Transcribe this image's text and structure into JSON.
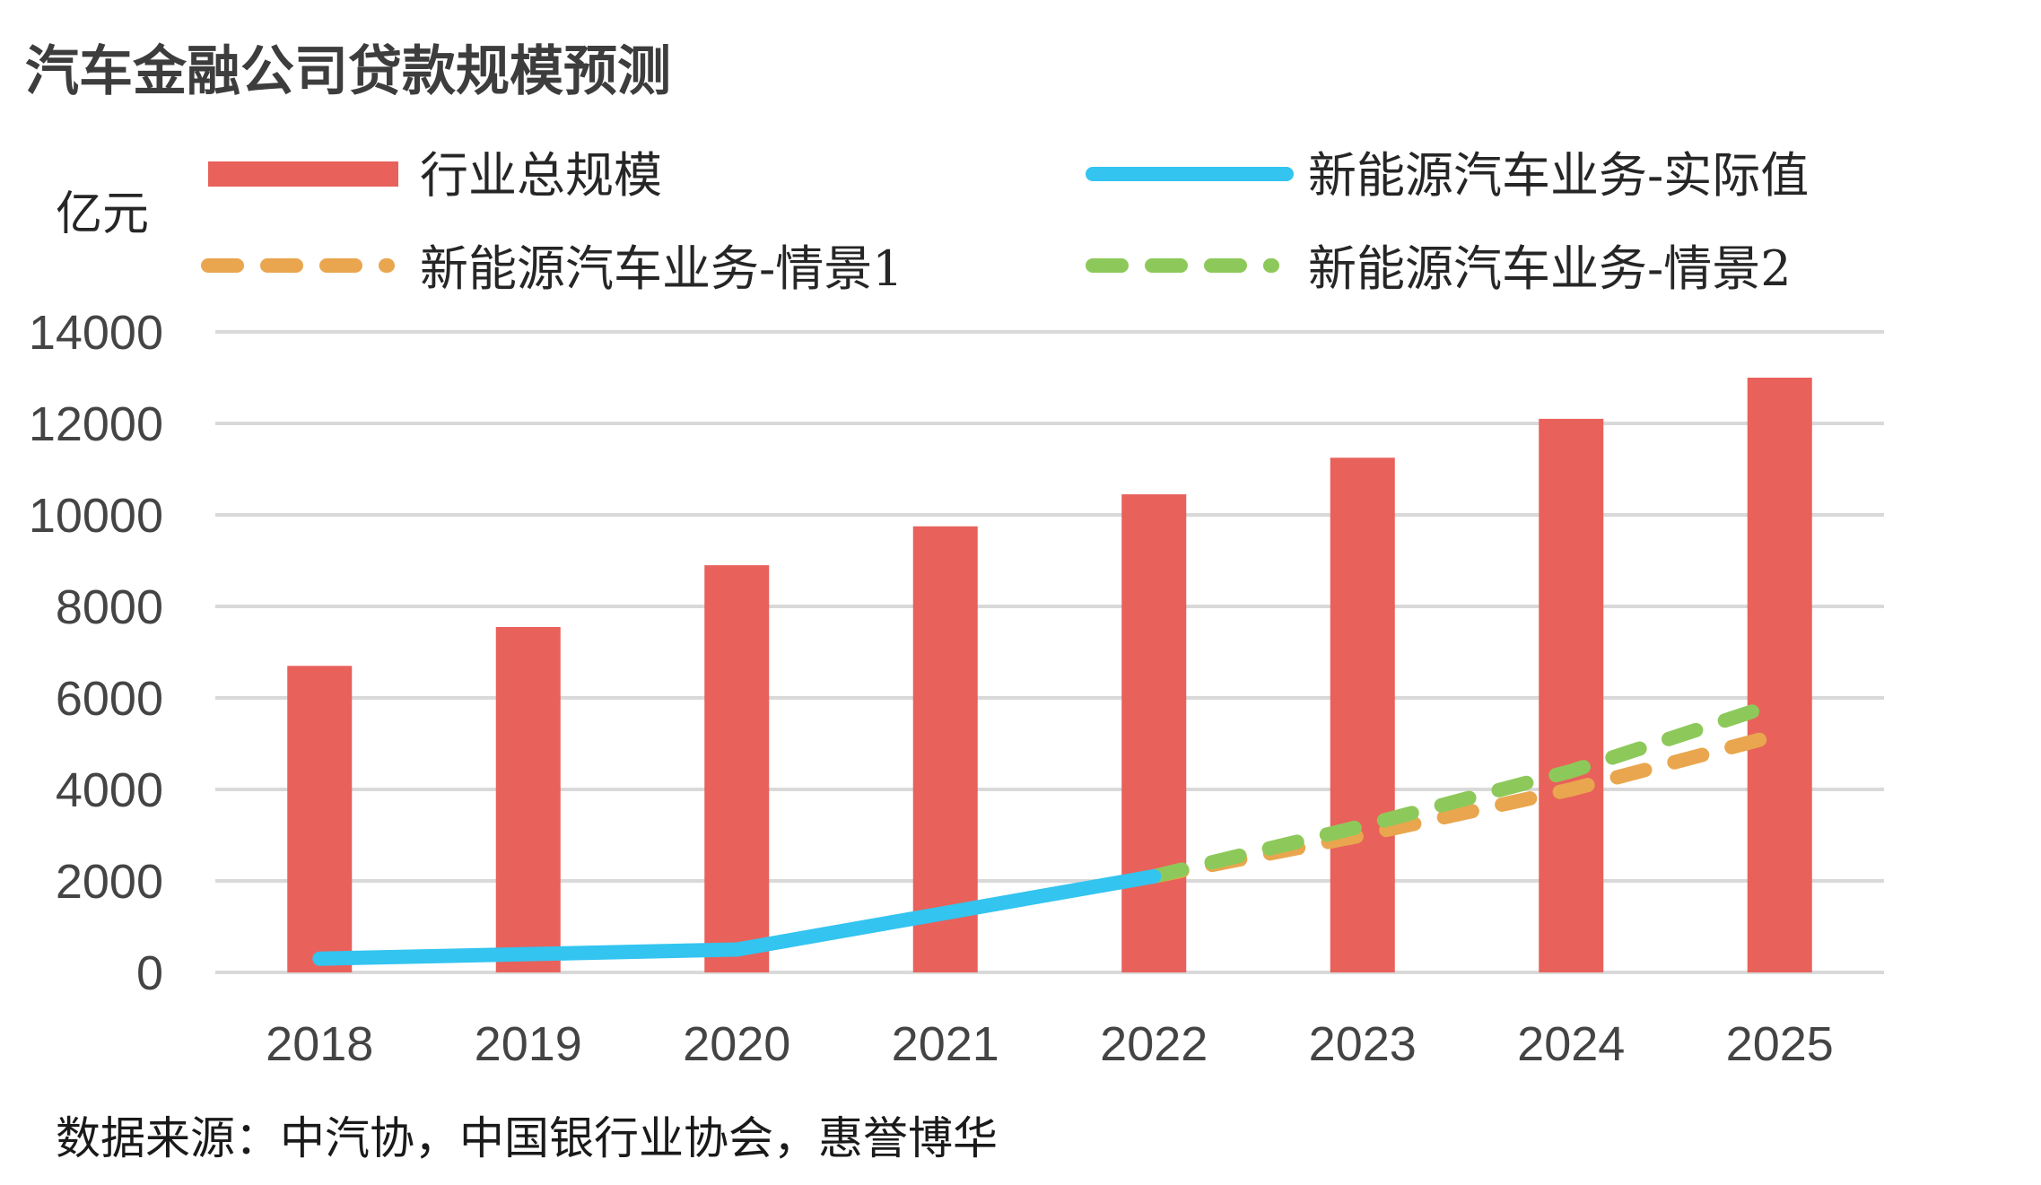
{
  "source": "数据来源：中汽协，中国银行业协会，惠誉博华",
  "colors": {
    "industry": "#e8615a",
    "actual": "#33c4f0",
    "scenario1": "#e9a64e",
    "scenario2": "#8dc95a",
    "grid": "#d9d9d9"
  },
  "chart_data": {
    "type": "bar",
    "title": "汽车金融公司贷款规模预测",
    "ylabel": "亿元",
    "xlabel": "",
    "categories": [
      "2018",
      "2019",
      "2020",
      "2021",
      "2022",
      "2023",
      "2024",
      "2025"
    ],
    "ylim": [
      0,
      14000
    ],
    "yticks": [
      0,
      2000,
      4000,
      6000,
      8000,
      10000,
      12000,
      14000
    ],
    "grid": true,
    "legend_position": "top",
    "series": [
      {
        "name": "行业总规模",
        "type": "bar",
        "values": [
          6700,
          7550,
          8900,
          9750,
          10450,
          11250,
          12100,
          13000
        ]
      },
      {
        "name": "新能源汽车业务-实际值",
        "type": "line",
        "values": [
          300,
          400,
          500,
          1300,
          2100,
          null,
          null,
          null
        ]
      },
      {
        "name": "新能源汽车业务-情景1",
        "type": "line-dashed",
        "values": [
          null,
          null,
          null,
          null,
          2100,
          3000,
          4000,
          5200
        ]
      },
      {
        "name": "新能源汽车业务-情景2",
        "type": "line-dashed",
        "values": [
          null,
          null,
          null,
          null,
          2100,
          3200,
          4400,
          5900
        ]
      }
    ]
  }
}
